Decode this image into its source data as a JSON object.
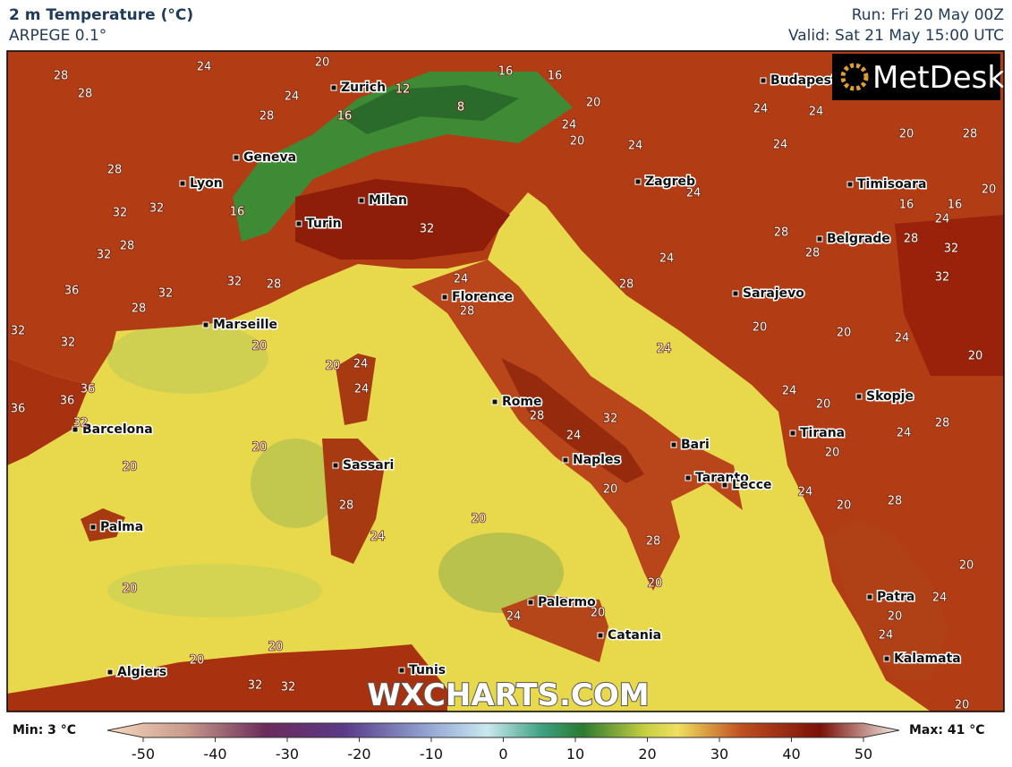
{
  "header": {
    "title": "2 m Temperature (°C)",
    "subtitle": "ARPEGE 0.1°",
    "run": "Run: Fri 20 May 00Z",
    "valid": "Valid: Sat 21 May 15:00 UTC"
  },
  "logo": "MetDesk",
  "watermark": "WXCHARTS.COM",
  "cities": [
    "Zurich",
    "Budapest",
    "Geneva",
    "Lyon",
    "Zagreb",
    "Timisoara",
    "Milan",
    "Turin",
    "Belgrade",
    "Florence",
    "Sarajevo",
    "Marseille",
    "Skopje",
    "Rome",
    "Barcelona",
    "Tirana",
    "Bari",
    "Naples",
    "Sassari",
    "Taranto",
    "Lecce",
    "Palma",
    "Patra",
    "Palermo",
    "Catania",
    "Kalamata",
    "Algiers",
    "Tunis"
  ],
  "contour_labels": [
    28,
    28,
    24,
    20,
    24,
    28,
    16,
    12,
    8,
    16,
    16,
    20,
    24,
    20,
    24,
    24,
    24,
    24,
    20,
    28,
    28,
    32,
    32,
    16,
    28,
    32,
    36,
    32,
    28,
    32,
    28,
    32,
    24,
    28,
    20,
    20,
    24,
    24,
    32,
    32,
    36,
    36,
    36,
    32,
    20,
    20,
    28,
    24,
    20,
    20,
    24,
    20,
    20,
    20,
    32,
    32,
    28,
    32,
    24,
    20,
    28,
    20,
    24,
    28,
    24,
    24,
    28,
    28,
    32,
    32,
    20,
    20,
    24,
    20,
    24,
    20,
    24,
    28,
    20,
    24,
    20,
    28,
    20,
    24,
    20,
    24,
    20,
    20,
    16,
    16,
    24,
    28
  ],
  "colorbar": {
    "min_label": "Min: 3 °C",
    "max_label": "Max: 41 °C",
    "ticks": [
      -50,
      -40,
      -30,
      -20,
      -10,
      0,
      10,
      20,
      30,
      40,
      50
    ]
  }
}
